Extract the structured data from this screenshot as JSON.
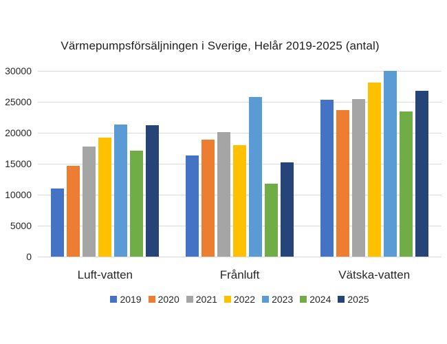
{
  "chart_data": {
    "type": "bar",
    "title": "Värmepumpsförsäljningen i Sverige, Helår 2019-2025 (antal)",
    "xlabel": "",
    "ylabel": "",
    "categories": [
      "Luft-vatten",
      "Frånluft",
      "Vätska-vatten"
    ],
    "series": [
      {
        "name": "2019",
        "color": "#4472C4",
        "values": [
          11000,
          16300,
          25300
        ]
      },
      {
        "name": "2020",
        "color": "#ED7D31",
        "values": [
          14700,
          18900,
          23700
        ]
      },
      {
        "name": "2021",
        "color": "#A5A5A5",
        "values": [
          17800,
          20100,
          25500
        ]
      },
      {
        "name": "2022",
        "color": "#FFC000",
        "values": [
          19200,
          18000,
          28100
        ]
      },
      {
        "name": "2023",
        "color": "#5B9BD5",
        "values": [
          21300,
          25800,
          30000
        ]
      },
      {
        "name": "2024",
        "color": "#70AD47",
        "values": [
          17100,
          11800,
          23500
        ]
      },
      {
        "name": "2025",
        "color": "#264478",
        "values": [
          21200,
          15200,
          26800
        ]
      }
    ],
    "ylim": [
      0,
      30000
    ],
    "yticks": [
      0,
      5000,
      10000,
      15000,
      20000,
      25000,
      30000
    ],
    "grid": true,
    "gridline_color": "#D9D9D9",
    "text_color": "#262626",
    "legend_position": "bottom"
  }
}
